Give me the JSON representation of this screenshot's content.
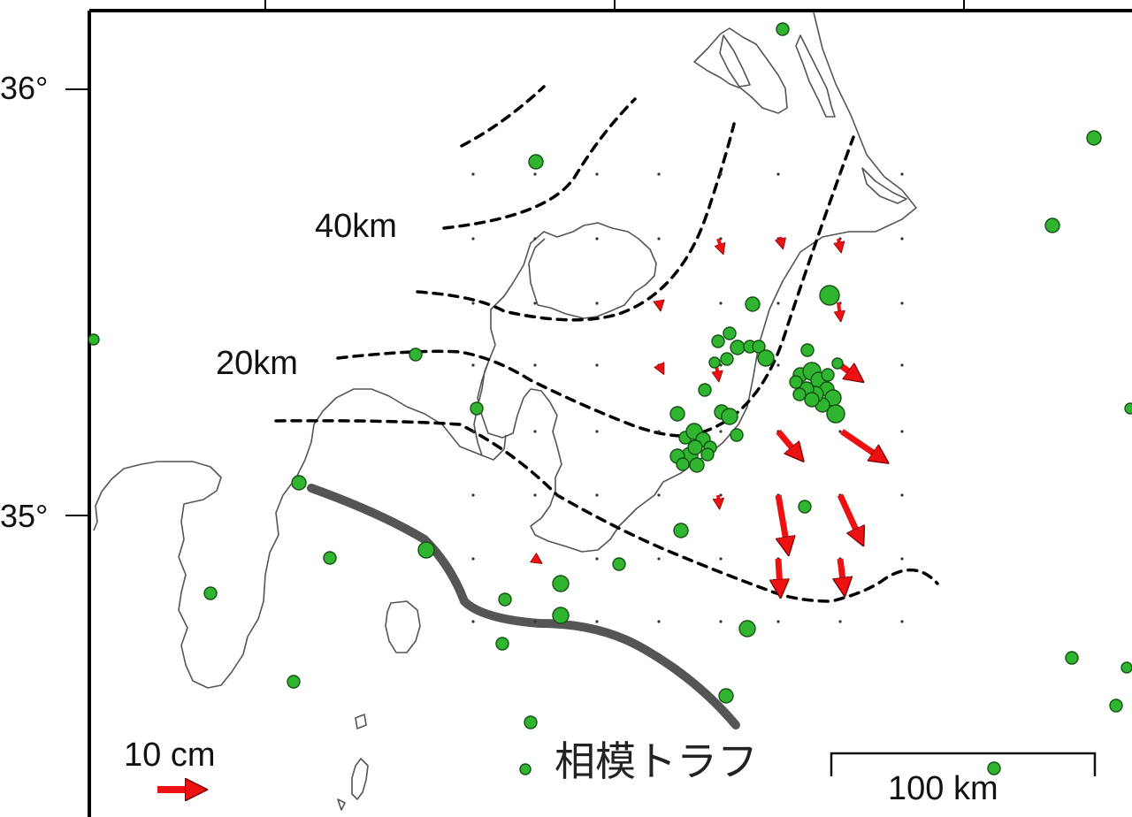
{
  "map": {
    "latitude_labels": [
      "36°",
      "35°"
    ],
    "contour_labels": [
      "40km",
      "20km"
    ],
    "trough_label": "相模トラフ",
    "vector_scale_label": "10 cm",
    "distance_scale_label": "100 km",
    "colors": {
      "coastline": "#555555",
      "contour": "#000000",
      "trough": "#555555",
      "epicenter_fill": "#2fb52f",
      "epicenter_stroke": "#145214",
      "displacement_arrow": "#ee1111",
      "grid_dot": "#333333",
      "frame": "#000000"
    },
    "legend": {
      "vector_length_cm": 10,
      "distance_km": 100
    }
  }
}
